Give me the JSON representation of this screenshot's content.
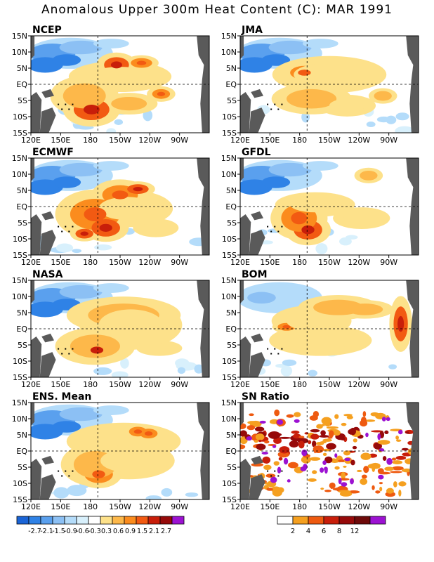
{
  "title": "Anomalous Upper 300m Heat Content (C): MAR 1991",
  "lat_labels": [
    "15N",
    "10N",
    "5N",
    "EQ",
    "5S",
    "10S",
    "15S"
  ],
  "lon_labels": [
    "120E",
    "150E",
    "180",
    "150W",
    "120W",
    "90W"
  ],
  "panels": [
    {
      "name": "NCEP"
    },
    {
      "name": "JMA"
    },
    {
      "name": "ECMWF"
    },
    {
      "name": "GFDL"
    },
    {
      "name": "NASA"
    },
    {
      "name": "BOM"
    },
    {
      "name": "ENS. Mean"
    },
    {
      "name": "SN Ratio"
    }
  ],
  "anomaly_colorbar": {
    "colors": [
      "#1a64d6",
      "#2f82e6",
      "#5aa0ee",
      "#8cc0f4",
      "#b4dcfa",
      "#d8f0fc",
      "#ffffff",
      "#fde18a",
      "#fdb84a",
      "#fb8c1e",
      "#f25a12",
      "#c81e0a",
      "#960a0a",
      "#9c12d2"
    ],
    "labels": [
      "-2.7",
      "-2.1",
      "-1.5",
      "-0.9",
      "-0.6",
      "-0.3",
      "0.3",
      "0.6",
      "0.9",
      "1.5",
      "2.1",
      "2.7"
    ]
  },
  "sn_colorbar": {
    "colors": [
      "#ffffff",
      "#f5a020",
      "#ee5a10",
      "#c81e0a",
      "#960a0a",
      "#6e0a0a",
      "#9c12d2"
    ],
    "labels": [
      "2",
      "4",
      "6",
      "8",
      "12"
    ]
  }
}
